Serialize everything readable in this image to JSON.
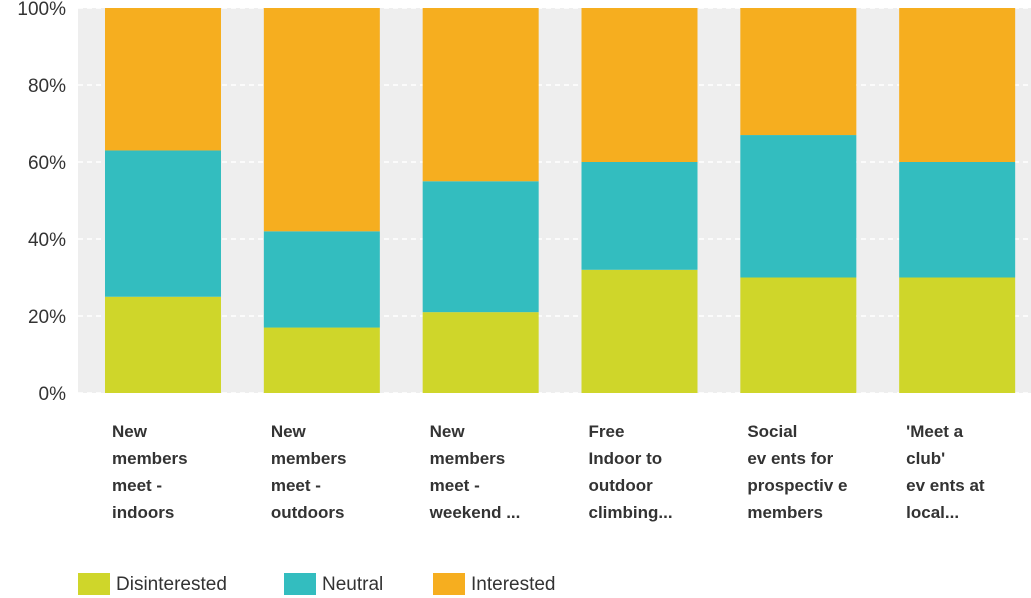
{
  "chart_data": {
    "type": "bar",
    "stacked": "percent",
    "title": "",
    "xlabel": "",
    "ylabel": "",
    "ylim": [
      0,
      100
    ],
    "yticks": [
      "0%",
      "20%",
      "40%",
      "60%",
      "80%",
      "100%"
    ],
    "grid": true,
    "legend_position": "bottom-left",
    "categories": [
      [
        "New",
        "members",
        "meet -",
        "indoors"
      ],
      [
        "New",
        "members",
        "meet -",
        "outdoors"
      ],
      [
        "New",
        "members",
        "meet -",
        "weekend ..."
      ],
      [
        "Free",
        "Indoor to",
        "outdoor",
        "climbing..."
      ],
      [
        "Social",
        "ev ents for",
        "prospectiv e",
        "members"
      ],
      [
        "'Meet a",
        "club'",
        "ev ents at",
        "local..."
      ]
    ],
    "series": [
      {
        "name": "Disinterested",
        "color": "#cfd62a",
        "values": [
          25,
          17,
          21,
          32,
          30,
          30
        ]
      },
      {
        "name": "Neutral",
        "color": "#33bdbf",
        "values": [
          38,
          25,
          34,
          28,
          37,
          30
        ]
      },
      {
        "name": "Interested",
        "color": "#f6ae1f",
        "values": [
          37,
          58,
          45,
          40,
          33,
          40
        ]
      }
    ],
    "background_color": "#eeeeee"
  }
}
